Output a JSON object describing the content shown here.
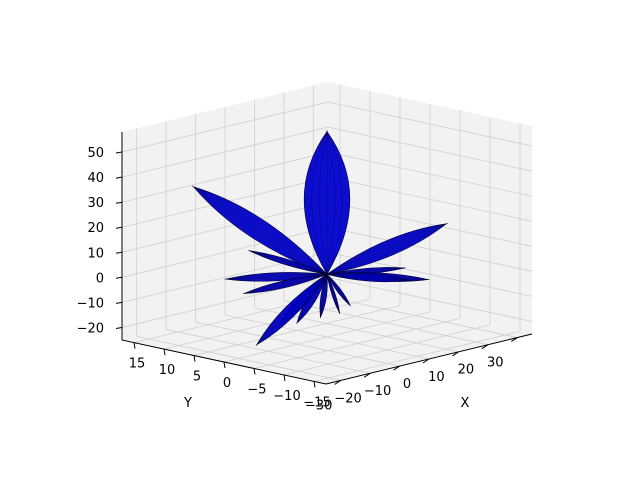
{
  "chart_data": {
    "type": "surface3d",
    "title": "",
    "colors": {
      "surface": "#0000cc",
      "surface_edge": "#000033",
      "pane": "#f2f2f2",
      "grid": "#cfcfcf"
    },
    "axes": {
      "x": {
        "label": "X",
        "lim": [
          -35,
          35
        ],
        "ticks": [
          30,
          20,
          10,
          0,
          -10,
          -20,
          -30
        ],
        "tick_labels": [
          "30",
          "20",
          "10",
          "0",
          "−10",
          "−20",
          "−30"
        ]
      },
      "y": {
        "label": "Y",
        "lim": [
          -17,
          17
        ],
        "ticks": [
          -15,
          -10,
          -5,
          0,
          5,
          10,
          15
        ],
        "tick_labels": [
          "−15",
          "−10",
          "−5",
          "0",
          "5",
          "10",
          "15"
        ]
      },
      "z": {
        "label": "",
        "lim": [
          -25,
          58
        ],
        "ticks": [
          -20,
          -10,
          0,
          10,
          20,
          30,
          40,
          50
        ],
        "tick_labels": [
          "−20",
          "−10",
          "0",
          "10",
          "20",
          "30",
          "40",
          "50"
        ]
      }
    },
    "grid": true,
    "lobes": [
      {
        "dx": 0,
        "dy": 0,
        "dz": 57,
        "width": 0.32
      },
      {
        "dx": -27,
        "dy": 9,
        "dz": 38,
        "width": 0.13
      },
      {
        "dx": 12,
        "dy": -14,
        "dz": 24,
        "width": 0.12
      },
      {
        "dx": -30,
        "dy": -3,
        "dz": -18,
        "width": 0.12
      },
      {
        "dx": 14,
        "dy": 3,
        "dz": -18,
        "width": 0.1
      },
      {
        "dx": 8,
        "dy": 5,
        "dz": -22,
        "width": 0.13
      },
      {
        "dx": 0,
        "dy": 5,
        "dz": -22,
        "width": 0.14
      },
      {
        "dx": -8,
        "dy": 4,
        "dz": -20,
        "width": 0.14
      },
      {
        "dx": 20,
        "dy": -4,
        "dz": -6,
        "width": 0.09
      },
      {
        "dx": 16,
        "dy": -9,
        "dz": -2,
        "width": 0.08
      },
      {
        "dx": -16,
        "dy": 9,
        "dz": -2,
        "width": 0.08
      },
      {
        "dx": -20,
        "dy": 4,
        "dz": -4,
        "width": 0.08
      },
      {
        "dx": 12,
        "dy": 8,
        "dz": -8,
        "width": 0.08
      },
      {
        "dx": -12,
        "dy": -8,
        "dz": -8,
        "width": 0.08
      },
      {
        "dx": 6,
        "dy": -10,
        "dz": 6,
        "width": 0.07
      },
      {
        "dx": -6,
        "dy": 10,
        "dz": 6,
        "width": 0.07
      }
    ]
  }
}
